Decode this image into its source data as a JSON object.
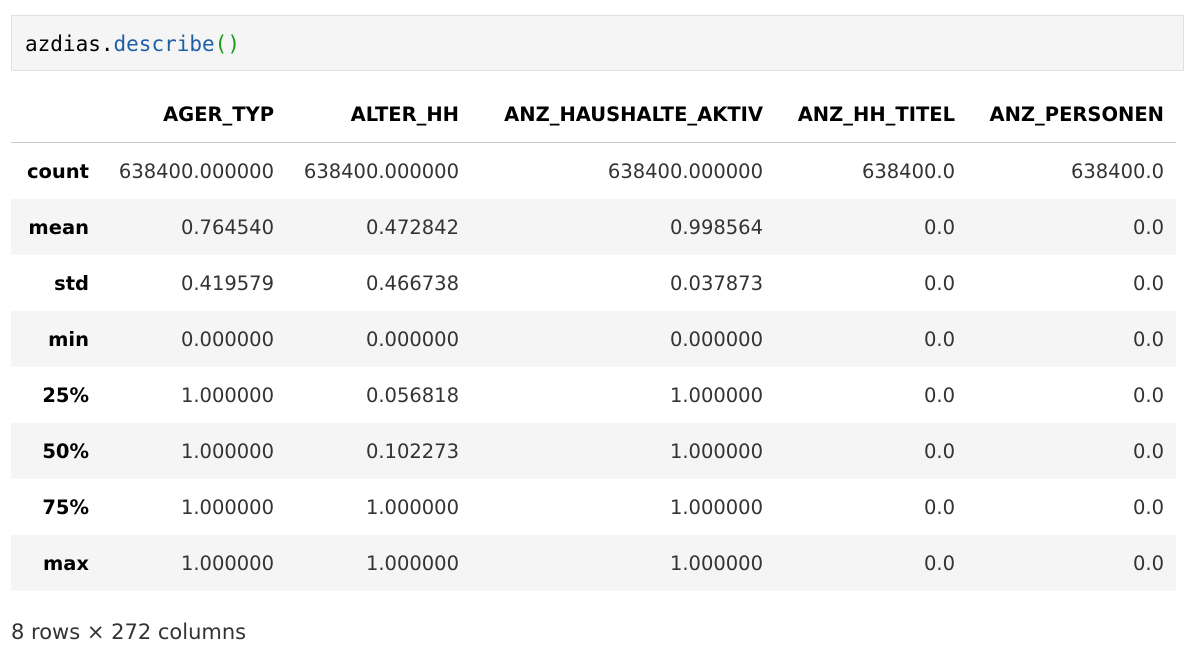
{
  "code_cell": {
    "object": "azdias",
    "dot": ".",
    "method": "describe",
    "parens": "()"
  },
  "table": {
    "columns": [
      "",
      "AGER_TYP",
      "ALTER_HH",
      "ANZ_HAUSHALTE_AKTIV",
      "ANZ_HH_TITEL",
      "ANZ_PERSONEN"
    ],
    "rows": [
      {
        "index": "count",
        "values": [
          "638400.000000",
          "638400.000000",
          "638400.000000",
          "638400.0",
          "638400.0"
        ]
      },
      {
        "index": "mean",
        "values": [
          "0.764540",
          "0.472842",
          "0.998564",
          "0.0",
          "0.0"
        ]
      },
      {
        "index": "std",
        "values": [
          "0.419579",
          "0.466738",
          "0.037873",
          "0.0",
          "0.0"
        ]
      },
      {
        "index": "min",
        "values": [
          "0.000000",
          "0.000000",
          "0.000000",
          "0.0",
          "0.0"
        ]
      },
      {
        "index": "25%",
        "values": [
          "1.000000",
          "0.056818",
          "1.000000",
          "0.0",
          "0.0"
        ]
      },
      {
        "index": "50%",
        "values": [
          "1.000000",
          "0.102273",
          "1.000000",
          "0.0",
          "0.0"
        ]
      },
      {
        "index": "75%",
        "values": [
          "1.000000",
          "1.000000",
          "1.000000",
          "0.0",
          "0.0"
        ]
      },
      {
        "index": "max",
        "values": [
          "1.000000",
          "1.000000",
          "1.000000",
          "0.0",
          "0.0"
        ]
      }
    ]
  },
  "shape_note": "8 rows × 272 columns",
  "colors": {
    "code_background": "#f5f5f5",
    "method": "#1f5fa8",
    "parens": "#1a9a1a",
    "stripe": "#f5f5f5"
  }
}
